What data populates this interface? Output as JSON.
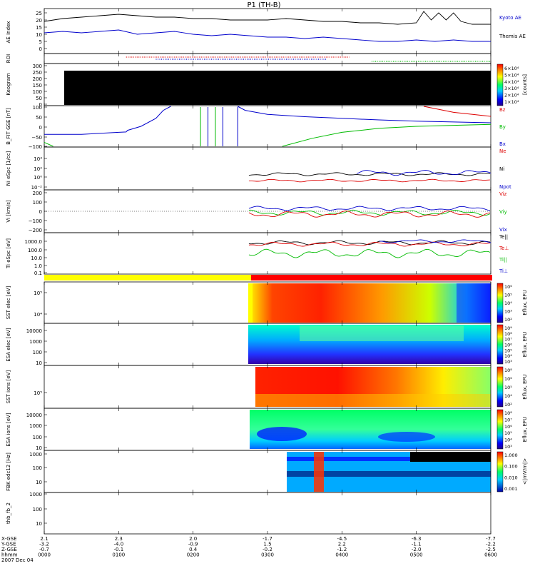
{
  "title": "P1 (TH-B)",
  "colors": {
    "black": "#000000",
    "blue": "#0000cc",
    "red": "#dd0000",
    "green": "#00bb00",
    "yellow": "#ffff00",
    "spec_red": "#ff2200"
  },
  "chart_data": [
    {
      "type": "line",
      "panel": "ae",
      "ylabel": "AE Index",
      "yticks": [
        "25",
        "20",
        "15",
        "10",
        "5",
        "0"
      ],
      "ylim": [
        -2,
        27
      ],
      "legend": [
        "Kyoto AE",
        "Themis AE"
      ],
      "series": [
        {
          "name": "Kyoto AE",
          "x": [
            0,
            0.25,
            0.5,
            0.75,
            1.0,
            1.25,
            1.5,
            1.75,
            2.0,
            2.25,
            2.5,
            2.75,
            3.0,
            3.25,
            3.5,
            3.75,
            4.0,
            4.25,
            4.5,
            4.75,
            5.0,
            5.1,
            5.2,
            5.3,
            5.4,
            5.5,
            5.6,
            5.75,
            6.0
          ],
          "values": [
            19,
            21,
            22,
            23,
            24,
            23,
            22,
            22,
            21,
            21,
            20,
            20,
            20,
            21,
            20,
            19,
            19,
            18,
            18,
            17,
            18,
            26,
            20,
            25,
            20,
            25,
            19,
            17,
            17
          ]
        },
        {
          "name": "Themis AE",
          "x": [
            0,
            0.25,
            0.5,
            0.75,
            1.0,
            1.25,
            1.5,
            1.75,
            2.0,
            2.25,
            2.5,
            2.75,
            3.0,
            3.25,
            3.5,
            3.75,
            4.0,
            4.25,
            4.5,
            4.75,
            5.0,
            5.25,
            5.5,
            5.75,
            6.0
          ],
          "values": [
            11,
            12,
            11,
            12,
            13,
            10,
            11,
            12,
            10,
            9,
            10,
            9,
            8,
            8,
            7,
            8,
            7,
            6,
            5,
            5,
            6,
            5,
            6,
            5,
            5
          ]
        }
      ]
    },
    {
      "type": "scatter",
      "panel": "roi",
      "ylabel": "ROI",
      "bars": [
        {
          "x": [
            1.1,
            4.1
          ],
          "color": "red"
        },
        {
          "x": [
            1.5,
            3.8
          ],
          "color": "blue"
        },
        {
          "x": [
            4.4,
            6.0
          ],
          "color": "green"
        }
      ]
    },
    {
      "type": "heatmap",
      "panel": "keogram",
      "ylabel": "Keogram",
      "yticks": [
        "300",
        "250",
        "200",
        "150",
        "100",
        "50",
        "0"
      ],
      "colorbar_ticks": [
        "6×10⁴",
        "5×10⁴",
        "4×10⁴",
        "3×10⁴",
        "2×10⁴",
        "1×10⁴"
      ],
      "colorbar_label": "[counts]",
      "x_start": 0.3,
      "x_end": 6.0
    },
    {
      "type": "line",
      "panel": "bfield",
      "ylabel": "B_FIT GSE [nT]",
      "yticks": [
        "100",
        "50",
        "0",
        "−50",
        "−100"
      ],
      "ylim": [
        -100,
        100
      ],
      "legend": [
        "Bz",
        "By",
        "Bx"
      ],
      "series": [
        {
          "name": "Bx",
          "x": [
            0,
            0.5,
            1.0,
            1.1,
            1.12,
            1.3,
            1.5,
            1.6,
            1.7
          ],
          "values": [
            -40,
            -40,
            -30,
            -28,
            -20,
            0,
            40,
            80,
            100
          ]
        },
        {
          "name": "Bx2",
          "x": [
            2.6,
            2.7,
            3.0,
            3.5,
            4.0,
            4.5,
            5.0,
            5.5,
            6.0
          ],
          "values": [
            100,
            80,
            60,
            48,
            40,
            32,
            26,
            22,
            18
          ]
        },
        {
          "name": "By",
          "x": [
            0,
            0.12
          ],
          "values": [
            -80,
            -100
          ]
        },
        {
          "name": "By2",
          "x": [
            3.2,
            3.6,
            4.0,
            4.5,
            5.0,
            5.5,
            6.0
          ],
          "values": [
            -100,
            -60,
            -30,
            -10,
            0,
            5,
            10
          ]
        },
        {
          "name": "Bz",
          "x": [
            5.1,
            5.5,
            6.0
          ],
          "values": [
            100,
            70,
            50
          ]
        }
      ]
    },
    {
      "type": "line",
      "panel": "density",
      "ylabel": "Ni eSpc [1/cc]",
      "yticks": [
        "10⁴",
        "10²",
        "10⁰",
        "10⁻²"
      ],
      "legend": [
        "Ne",
        "Ni",
        "Npot"
      ]
    },
    {
      "type": "line",
      "panel": "velocity",
      "ylabel": "Vi [km/s]",
      "yticks": [
        "200",
        "100",
        "0",
        "−100",
        "−200"
      ],
      "ylim": [
        -250,
        250
      ],
      "legend": [
        "Viz",
        "Viy",
        "Vix"
      ]
    },
    {
      "type": "line",
      "panel": "temp",
      "ylabel": "Ti eSpc [eV]",
      "yticks": [
        "1000.0",
        "100.0",
        "10.0",
        "1.0",
        "0.1"
      ],
      "legend": [
        "Te||",
        "Te⊥",
        "Ti||",
        "Ti⊥"
      ]
    },
    {
      "type": "heatmap",
      "panel": "sst_e",
      "ylabel": "SST elec [eV]",
      "yticks": [
        "10⁵",
        "10⁴"
      ],
      "colorbar_ticks": [
        "10⁶",
        "10⁵",
        "10⁴",
        "10³",
        "10²"
      ],
      "colorbar_label": "Eflux, EFU"
    },
    {
      "type": "heatmap",
      "panel": "esa_e",
      "ylabel": "ESA elec [eV]",
      "yticks": [
        "10000",
        "1000",
        "100",
        "10"
      ],
      "colorbar_ticks": [
        "10⁹",
        "10⁸",
        "10⁷",
        "10⁶",
        "10⁵",
        "10⁴",
        "10³"
      ],
      "colorbar_label": "Eflux, EFU"
    },
    {
      "type": "heatmap",
      "panel": "sst_i",
      "ylabel": "SST ions [eV]",
      "yticks": [
        "10⁵"
      ],
      "colorbar_ticks": [
        "10⁸",
        "10⁶",
        "10⁵",
        "10⁴",
        "10²"
      ],
      "colorbar_label": "Eflux, EFU"
    },
    {
      "type": "heatmap",
      "panel": "esa_i",
      "ylabel": "ESA ions [eV]",
      "yticks": [
        "10000",
        "1000",
        "100",
        "10"
      ],
      "colorbar_ticks": [
        "10⁸",
        "10⁷",
        "10⁶",
        "10⁵",
        "10⁴",
        "10³"
      ],
      "colorbar_label": "Eflux, EFU"
    },
    {
      "type": "heatmap",
      "panel": "fbk",
      "ylabel": "FBK edc12 [Hz]",
      "yticks": [
        "1000",
        "100",
        "10"
      ],
      "colorbar_ticks": [
        "1.000",
        "0.100",
        "0.010",
        "0.001"
      ],
      "colorbar_label": "<|mV/m|>"
    },
    {
      "type": "heatmap",
      "panel": "fbk2",
      "ylabel": "thb_fb_2",
      "yticks": [
        "1000",
        "100",
        "10"
      ]
    }
  ],
  "axis_table": {
    "row_labels": [
      "X-GSE",
      "Y-GSE",
      "Z-GSE",
      "hhmm",
      "2007 Dec 04"
    ],
    "columns": [
      [
        "2.1",
        "-3.2",
        "-0.7",
        "0000"
      ],
      [
        "2.3",
        "-4.0",
        "-0.1",
        "0100"
      ],
      [
        "2.0",
        "-0.9",
        "0.4",
        "0200"
      ],
      [
        "-1.7",
        "1.5",
        "-0.2",
        "0300"
      ],
      [
        "-4.5",
        "2.2",
        "-1.2",
        "0400"
      ],
      [
        "-6.3",
        "-1.1",
        "-2.0",
        "0500"
      ],
      [
        "-7.7",
        "-2.2",
        "-2.5",
        "0600"
      ]
    ]
  }
}
